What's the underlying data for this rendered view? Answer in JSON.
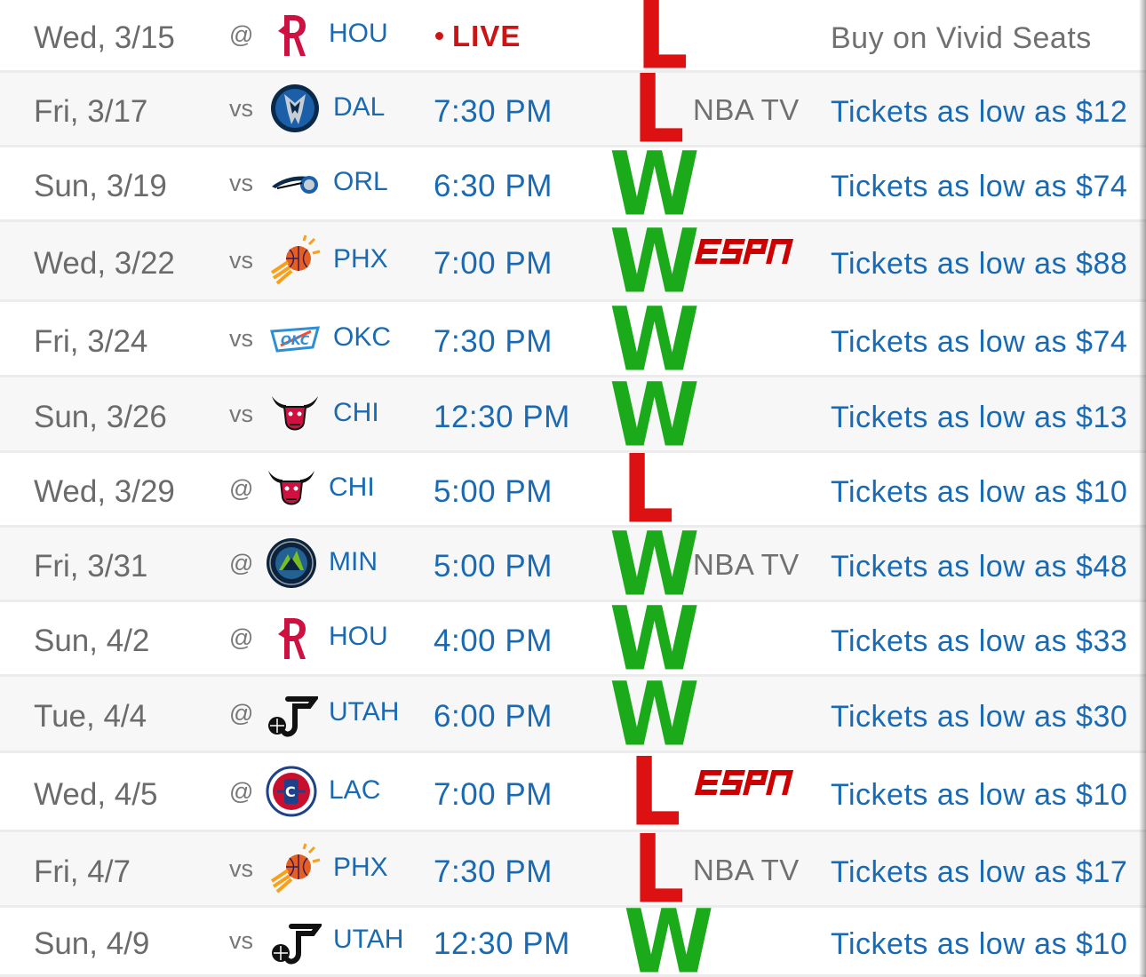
{
  "schedule": {
    "games": [
      {
        "date": "Wed, 3/15",
        "home_away": "@",
        "team": "HOU",
        "logo": "rockets-logo-icon",
        "time": "",
        "live": "LIVE",
        "result": "L",
        "tv": "",
        "tv_logo": "",
        "tickets": "Buy on Vivid Seats"
      },
      {
        "date": "Fri, 3/17",
        "home_away": "vs",
        "team": "DAL",
        "logo": "mavericks-logo-icon",
        "time": "7:30 PM",
        "live": "",
        "result": "L",
        "tv": "NBA TV",
        "tv_logo": "",
        "tickets": "Tickets as low as $12"
      },
      {
        "date": "Sun, 3/19",
        "home_away": "vs",
        "team": "ORL",
        "logo": "magic-logo-icon",
        "time": "6:30 PM",
        "live": "",
        "result": "W",
        "tv": "",
        "tv_logo": "",
        "tickets": "Tickets as low as $74"
      },
      {
        "date": "Wed, 3/22",
        "home_away": "vs",
        "team": "PHX",
        "logo": "suns-logo-icon",
        "time": "7:00 PM",
        "live": "",
        "result": "W",
        "tv": "",
        "tv_logo": "espn-logo-icon",
        "tickets": "Tickets as low as $88"
      },
      {
        "date": "Fri, 3/24",
        "home_away": "vs",
        "team": "OKC",
        "logo": "thunder-logo-icon",
        "time": "7:30 PM",
        "live": "",
        "result": "W",
        "tv": "",
        "tv_logo": "",
        "tickets": "Tickets as low as $74"
      },
      {
        "date": "Sun, 3/26",
        "home_away": "vs",
        "team": "CHI",
        "logo": "bulls-logo-icon",
        "time": "12:30 PM",
        "live": "",
        "result": "W",
        "tv": "",
        "tv_logo": "",
        "tickets": "Tickets as low as $13"
      },
      {
        "date": "Wed, 3/29",
        "home_away": "@",
        "team": "CHI",
        "logo": "bulls-logo-icon",
        "time": "5:00 PM",
        "live": "",
        "result": "L",
        "tv": "",
        "tv_logo": "",
        "tickets": "Tickets as low as $10"
      },
      {
        "date": "Fri, 3/31",
        "home_away": "@",
        "team": "MIN",
        "logo": "timberwolves-logo-icon",
        "time": "5:00 PM",
        "live": "",
        "result": "W",
        "tv": "NBA TV",
        "tv_logo": "",
        "tickets": "Tickets as low as $48"
      },
      {
        "date": "Sun, 4/2",
        "home_away": "@",
        "team": "HOU",
        "logo": "rockets-logo-icon",
        "time": "4:00 PM",
        "live": "",
        "result": "W",
        "tv": "",
        "tv_logo": "",
        "tickets": "Tickets as low as $33"
      },
      {
        "date": "Tue, 4/4",
        "home_away": "@",
        "team": "UTAH",
        "logo": "jazz-logo-icon",
        "time": "6:00 PM",
        "live": "",
        "result": "W",
        "tv": "",
        "tv_logo": "",
        "tickets": "Tickets as low as $30"
      },
      {
        "date": "Wed, 4/5",
        "home_away": "@",
        "team": "LAC",
        "logo": "clippers-logo-icon",
        "time": "7:00 PM",
        "live": "",
        "result": "L",
        "tv": "",
        "tv_logo": "espn-logo-icon",
        "tickets": "Tickets as low as $10"
      },
      {
        "date": "Fri, 4/7",
        "home_away": "vs",
        "team": "PHX",
        "logo": "suns-logo-icon",
        "time": "7:30 PM",
        "live": "",
        "result": "L",
        "tv": "NBA TV",
        "tv_logo": "",
        "tickets": "Tickets as low as $17"
      },
      {
        "date": "Sun, 4/9",
        "home_away": "vs",
        "team": "UTAH",
        "logo": "jazz-logo-icon",
        "time": "12:30 PM",
        "live": "",
        "result": "W",
        "tv": "",
        "tv_logo": "",
        "tickets": "Tickets as low as $10"
      }
    ]
  },
  "colors": {
    "link_blue": "#1a6ab3",
    "win_green": "#1aaa1a",
    "loss_red": "#dd1111",
    "live_red": "#cc1414",
    "text_grey": "#6b6b6b",
    "row_alt": "#f7f7f7",
    "espn_red": "#cc0000"
  }
}
